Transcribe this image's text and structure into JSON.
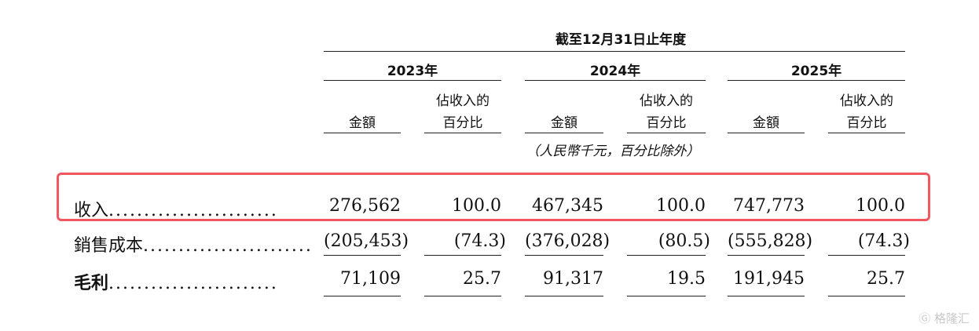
{
  "period_title": "截至12月31日止年度",
  "years": [
    "2023年",
    "2024年",
    "2025年"
  ],
  "col_amount": "金額",
  "col_pct_line1": "佔收入的",
  "col_pct_line2": "百分比",
  "unit_note": "（人民幣千元，百分比除外）",
  "rows": [
    {
      "label": "收入",
      "dots": "........................",
      "values": [
        "276,562",
        "100.0",
        "467,345",
        "100.0",
        "747,773",
        "100.0"
      ]
    },
    {
      "label": "銷售成本",
      "dots": "........................",
      "values": [
        "(205,453)",
        "(74.3)",
        "(376,028)",
        "(80.5)",
        "(555,828)",
        "(74.3)"
      ]
    },
    {
      "label": "毛利",
      "dots": "........................",
      "values": [
        "71,109",
        "25.7",
        "91,317",
        "19.5",
        "191,945",
        "25.7"
      ]
    }
  ],
  "watermark": "格隆汇",
  "highlight_color": "#f0575e"
}
